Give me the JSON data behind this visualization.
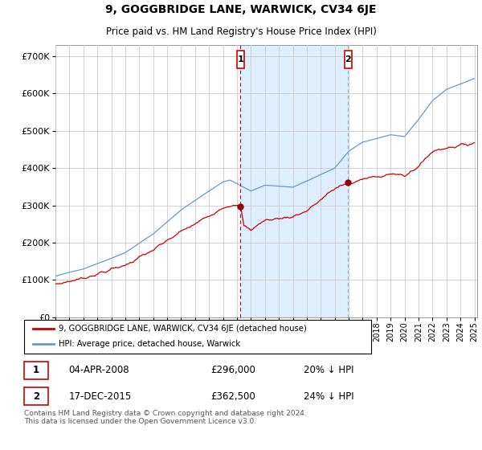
{
  "title": "9, GOGGBRIDGE LANE, WARWICK, CV34 6JE",
  "subtitle": "Price paid vs. HM Land Registry's House Price Index (HPI)",
  "legend_entry1": "9, GOGGBRIDGE LANE, WARWICK, CV34 6JE (detached house)",
  "legend_entry2": "HPI: Average price, detached house, Warwick",
  "annotation1_label": "1",
  "annotation1_date": "04-APR-2008",
  "annotation1_price": "£296,000",
  "annotation1_hpi": "20% ↓ HPI",
  "annotation1_year": 2008.25,
  "annotation1_value": 296000,
  "annotation2_label": "2",
  "annotation2_date": "17-DEC-2015",
  "annotation2_price": "£362,500",
  "annotation2_hpi": "24% ↓ HPI",
  "annotation2_year": 2015.96,
  "annotation2_value": 362500,
  "footer": "Contains HM Land Registry data © Crown copyright and database right 2024.\nThis data is licensed under the Open Government Licence v3.0.",
  "ylim": [
    0,
    730000
  ],
  "yticks": [
    0,
    100000,
    200000,
    300000,
    400000,
    500000,
    600000,
    700000
  ],
  "background_color": "#ffffff",
  "shade_color": "#ddeeff",
  "line_color_red": "#cc0000",
  "line_color_blue": "#6699cc",
  "grid_color": "#cccccc",
  "ann1_line_color": "#cc0000",
  "ann2_line_color": "#aaaaaa"
}
